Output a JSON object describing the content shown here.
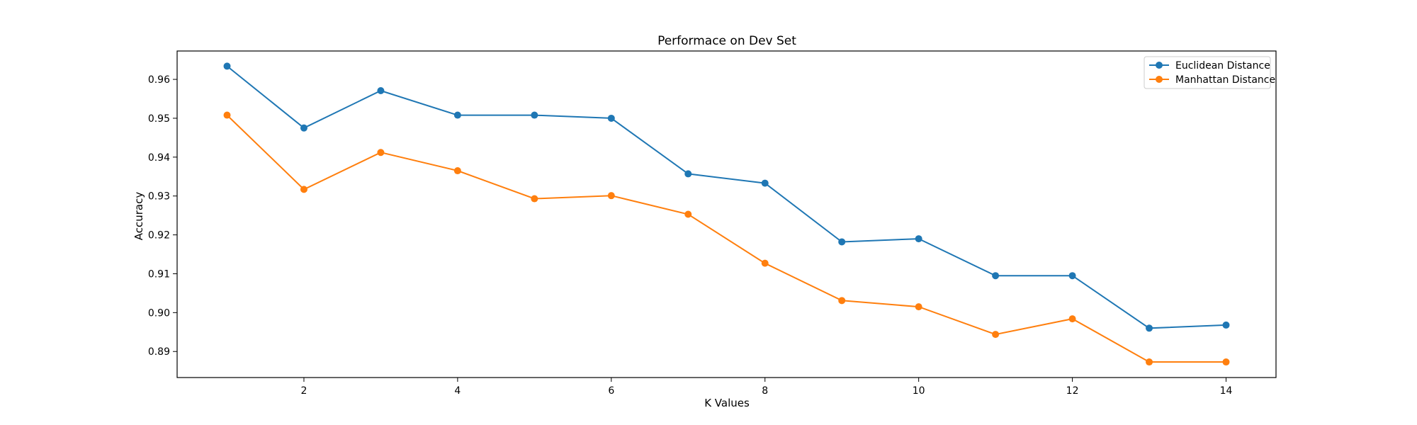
{
  "chart_data": {
    "type": "line",
    "title": "Performace on Dev Set",
    "xlabel": "K Values",
    "ylabel": "Accuracy",
    "x": [
      1,
      2,
      3,
      4,
      5,
      6,
      7,
      8,
      9,
      10,
      11,
      12,
      13,
      14
    ],
    "xlim": [
      0.35,
      14.65
    ],
    "ylim": [
      0.8833,
      0.9673
    ],
    "xticks": [
      2,
      4,
      6,
      8,
      10,
      12,
      14
    ],
    "xtick_labels": [
      "2",
      "4",
      "6",
      "8",
      "10",
      "12",
      "14"
    ],
    "yticks": [
      0.89,
      0.9,
      0.91,
      0.92,
      0.93,
      0.94,
      0.95,
      0.96
    ],
    "ytick_labels": [
      "0.89",
      "0.90",
      "0.91",
      "0.92",
      "0.93",
      "0.94",
      "0.95",
      "0.96"
    ],
    "grid": false,
    "legend_position": "top-right",
    "series": [
      {
        "name": "Euclidean Distance",
        "color": "#1f77b4",
        "values": [
          0.9634,
          0.9475,
          0.9571,
          0.9508,
          0.9508,
          0.95,
          0.9357,
          0.9333,
          0.9182,
          0.919,
          0.9095,
          0.9095,
          0.896,
          0.8968
        ]
      },
      {
        "name": "Manhattan Distance",
        "color": "#ff7f0e",
        "values": [
          0.9508,
          0.9317,
          0.9412,
          0.9365,
          0.9293,
          0.9301,
          0.9253,
          0.9127,
          0.9031,
          0.9015,
          0.8944,
          0.8984,
          0.8873,
          0.8873
        ]
      }
    ]
  }
}
